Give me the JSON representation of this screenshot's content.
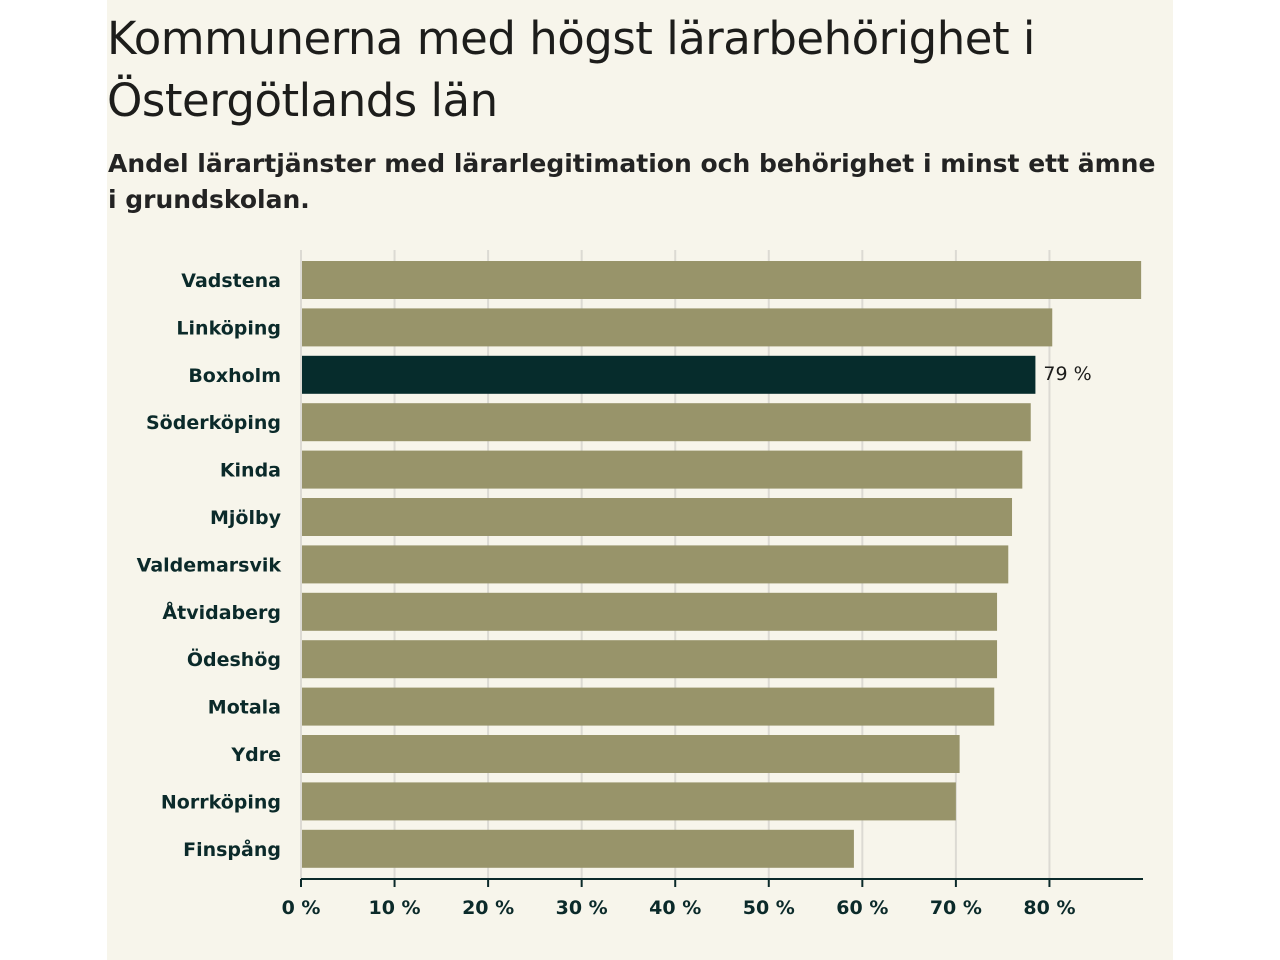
{
  "chart_data": {
    "type": "bar",
    "orientation": "horizontal",
    "title": "Kommunerna med högst lärarbehörighet i Östergötlands län",
    "subtitle": "Andel lärartjänster med lärarlegitimation och behörighet i minst ett ämne i grundskolan.",
    "categories": [
      "Vadstena",
      "Linköping",
      "Boxholm",
      "Söderköping",
      "Kinda",
      "Mjölby",
      "Valdemarsvik",
      "Åtvidaberg",
      "Ödeshög",
      "Motala",
      "Ydre",
      "Norrköping",
      "Finspång"
    ],
    "values": [
      89.8,
      80.3,
      78.5,
      78.0,
      77.1,
      76.0,
      75.6,
      74.4,
      74.4,
      74.1,
      70.4,
      70.0,
      59.1
    ],
    "highlight": "Boxholm",
    "highlight_label": "79 %",
    "xlim": [
      0,
      90
    ],
    "xticks": [
      0,
      10,
      20,
      30,
      40,
      50,
      60,
      70,
      80
    ],
    "tick_labels": [
      "0 %",
      "10 %",
      "20 %",
      "30 %",
      "40 %",
      "50 %",
      "60 %",
      "70 %",
      "80 %"
    ],
    "grid": true,
    "colors": {
      "bar": "#98946a",
      "highlight": "#062c2c",
      "grid": "#dcdad3",
      "axis": "#0b2a2a"
    }
  }
}
